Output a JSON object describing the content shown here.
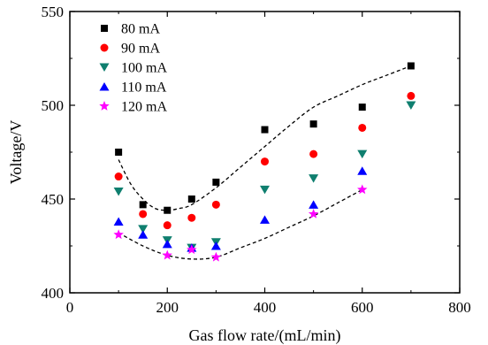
{
  "chart_data": {
    "type": "scatter",
    "title": "",
    "xlabel": "Gas flow rate/(mL/min)",
    "ylabel": "Voltage/V",
    "xlim": [
      0,
      800
    ],
    "ylim": [
      400,
      550
    ],
    "xticks": [
      0,
      200,
      400,
      600,
      800
    ],
    "yticks": [
      400,
      450,
      500,
      550
    ],
    "grid": false,
    "legend_position": "top-left",
    "series": [
      {
        "name": "80 mA",
        "marker": "square",
        "color": "#000000",
        "x": [
          100,
          150,
          200,
          250,
          300,
          400,
          500,
          600,
          700
        ],
        "y": [
          475,
          447,
          444,
          450,
          459,
          487,
          490,
          499,
          521
        ]
      },
      {
        "name": "90 mA",
        "marker": "circle",
        "color": "#ff0000",
        "x": [
          100,
          150,
          200,
          250,
          300,
          400,
          500,
          600,
          700
        ],
        "y": [
          462,
          442,
          436,
          440,
          447,
          470,
          474,
          488,
          505
        ]
      },
      {
        "name": "100 mA",
        "marker": "triangle-down",
        "color": "#0f7f6f",
        "x": [
          100,
          150,
          200,
          250,
          300,
          400,
          500,
          600,
          700
        ],
        "y": [
          454,
          434,
          428,
          424,
          427,
          455,
          461,
          474,
          500
        ]
      },
      {
        "name": "110 mA",
        "marker": "triangle-up",
        "color": "#0000ff",
        "x": [
          100,
          150,
          200,
          250,
          300,
          400,
          500,
          600
        ],
        "y": [
          438,
          431,
          426,
          424,
          425,
          439,
          447,
          465
        ]
      },
      {
        "name": "120 mA",
        "marker": "star",
        "color": "#ff00ff",
        "x": [
          100,
          200,
          250,
          300,
          500,
          600
        ],
        "y": [
          431,
          420,
          423,
          419,
          442,
          455
        ]
      }
    ],
    "trend_curves": [
      {
        "series": "80 mA",
        "style": "dashed",
        "color": "#000000",
        "x": [
          100,
          125,
          150,
          175,
          200,
          225,
          250,
          300,
          350,
          400,
          450,
          500,
          550,
          600,
          650,
          700
        ],
        "y": [
          471,
          458,
          450,
          445,
          444,
          445,
          447,
          456,
          467,
          478,
          489,
          499,
          505,
          511,
          516,
          521
        ]
      },
      {
        "series": "120 mA",
        "style": "dashed",
        "color": "#000000",
        "x": [
          100,
          150,
          200,
          250,
          300,
          350,
          400,
          450,
          500,
          550,
          600
        ],
        "y": [
          432,
          425,
          420,
          418,
          419,
          424,
          429,
          435,
          441,
          448,
          455
        ]
      }
    ]
  }
}
